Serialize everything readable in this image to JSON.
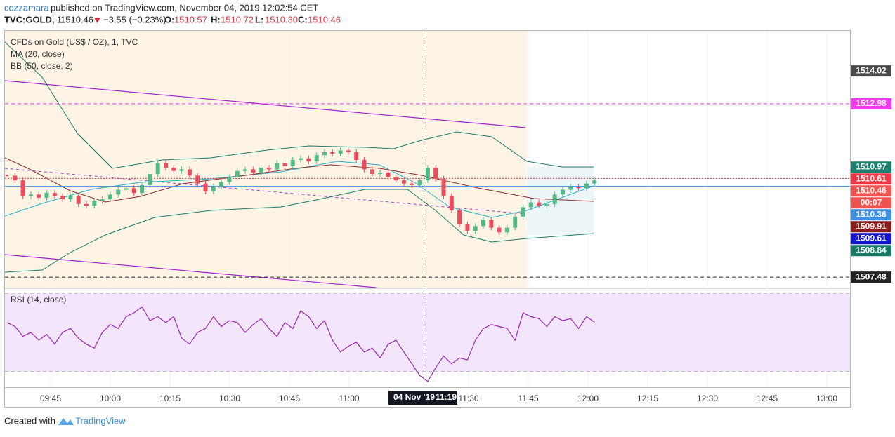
{
  "header": {
    "author": "cozzamara",
    "published": "published on TradingView.com, November 04, 2019 12:02:54 CET",
    "symbol": "TVC:GOLD, 1",
    "last": "1510.46",
    "change": "−3.55 (−0.23%)",
    "ohlc": [
      {
        "key": "O:",
        "value": "1510.57"
      },
      {
        "key": "H:",
        "value": "1510.72"
      },
      {
        "key": "L:",
        "value": "1510.30"
      },
      {
        "key": "C:",
        "value": "1510.46"
      }
    ]
  },
  "footer": {
    "created": "Created with",
    "brand": "TradingView"
  },
  "chart_data": [
    {
      "type": "candlestick",
      "title": "CFDs on Gold (US$ / OZ), 1, TVC",
      "indicators": [
        "MA (20, close)",
        "BB (50, close, 2)"
      ],
      "up_color": "#53b987",
      "down_color": "#eb4d5c",
      "values": [
        1510.7,
        1510.55,
        1510.05,
        1510.1,
        1510.0,
        1510.15,
        1510.05,
        1509.95,
        1510.05,
        1509.8,
        1509.75,
        1509.9,
        1509.95,
        1510.1,
        1510.25,
        1510.3,
        1510.15,
        1510.4,
        1510.75,
        1511.1,
        1510.95,
        1510.85,
        1510.9,
        1510.7,
        1510.45,
        1510.2,
        1510.35,
        1510.5,
        1510.65,
        1510.85,
        1510.9,
        1510.8,
        1510.95,
        1510.9,
        1511.1,
        1511.0,
        1511.2,
        1511.25,
        1511.15,
        1511.35,
        1511.45,
        1511.4,
        1511.5,
        1511.45,
        1511.2,
        1510.9,
        1510.75,
        1510.8,
        1510.65,
        1510.55,
        1510.45,
        1510.4,
        1510.55,
        1510.95,
        1510.6,
        1510.05,
        1509.6,
        1509.15,
        1508.95,
        1509.1,
        1509.3,
        1509.05,
        1508.9,
        1509.05,
        1509.4,
        1509.7,
        1509.85,
        1509.75,
        1509.8,
        1510.1,
        1510.25,
        1510.35,
        1510.3,
        1510.45,
        1510.55
      ],
      "ylim": [
        1507.15,
        1515.29
      ],
      "price_labels": [
        {
          "value": 1514.02,
          "color": "#4a4a4a"
        },
        {
          "value": 1512.98,
          "color": "#f03cf0",
          "line": "dashed"
        },
        {
          "value": 1510.97,
          "color": "#1e7f6e"
        },
        {
          "value": 1510.61,
          "color": "#f23645",
          "line": "dotted"
        },
        {
          "value": 1510.46,
          "color": "#ef5350"
        },
        {
          "value": 1510.36,
          "color": "#3d8fe0",
          "line": "solid"
        },
        {
          "value": 1509.91,
          "color": "#8b1a1a"
        },
        {
          "value": 1509.61,
          "color": "#1414d2"
        },
        {
          "value": 1508.84,
          "color": "#1b7a66"
        },
        {
          "value": 1507.48,
          "color": "#222222",
          "line": "dashed"
        }
      ],
      "countdown": "00:07",
      "xticks": [
        {
          "value": 585,
          "label": "09:45"
        },
        {
          "value": 600,
          "label": "10:00"
        },
        {
          "value": 615,
          "label": "10:15"
        },
        {
          "value": 630,
          "label": "10:30"
        },
        {
          "value": 645,
          "label": "10:45"
        },
        {
          "value": 660,
          "label": "11:00"
        },
        {
          "value": 690,
          "label": "11:30"
        },
        {
          "value": 705,
          "label": "11:45"
        },
        {
          "value": 720,
          "label": "12:00"
        },
        {
          "value": 735,
          "label": "12:15"
        },
        {
          "value": 750,
          "label": "12:30"
        },
        {
          "value": 765,
          "label": "12:45"
        },
        {
          "value": 780,
          "label": "13:00"
        }
      ],
      "crosshair": {
        "date": "04 Nov '19",
        "time": "11:19"
      }
    },
    {
      "type": "line",
      "title": "RSI (14, close)",
      "color": "#9c27b0",
      "values": [
        55,
        53,
        48,
        50,
        46,
        49,
        44,
        50,
        52,
        47,
        44,
        42,
        50,
        54,
        52,
        58,
        60,
        63,
        56,
        58,
        55,
        58,
        47,
        44,
        50,
        52,
        58,
        53,
        56,
        55,
        50,
        54,
        57,
        52,
        48,
        55,
        52,
        61,
        58,
        52,
        56,
        46,
        40,
        43,
        45,
        40,
        42,
        37,
        44,
        46,
        40,
        34,
        28,
        25,
        32,
        38,
        34,
        37,
        36,
        46,
        52,
        54,
        53,
        52,
        46,
        60,
        58,
        57,
        53,
        58,
        56,
        57,
        52,
        58,
        55.23
      ],
      "ylim": [
        22.1,
        72.1
      ],
      "bands": [
        30,
        70
      ]
    }
  ]
}
